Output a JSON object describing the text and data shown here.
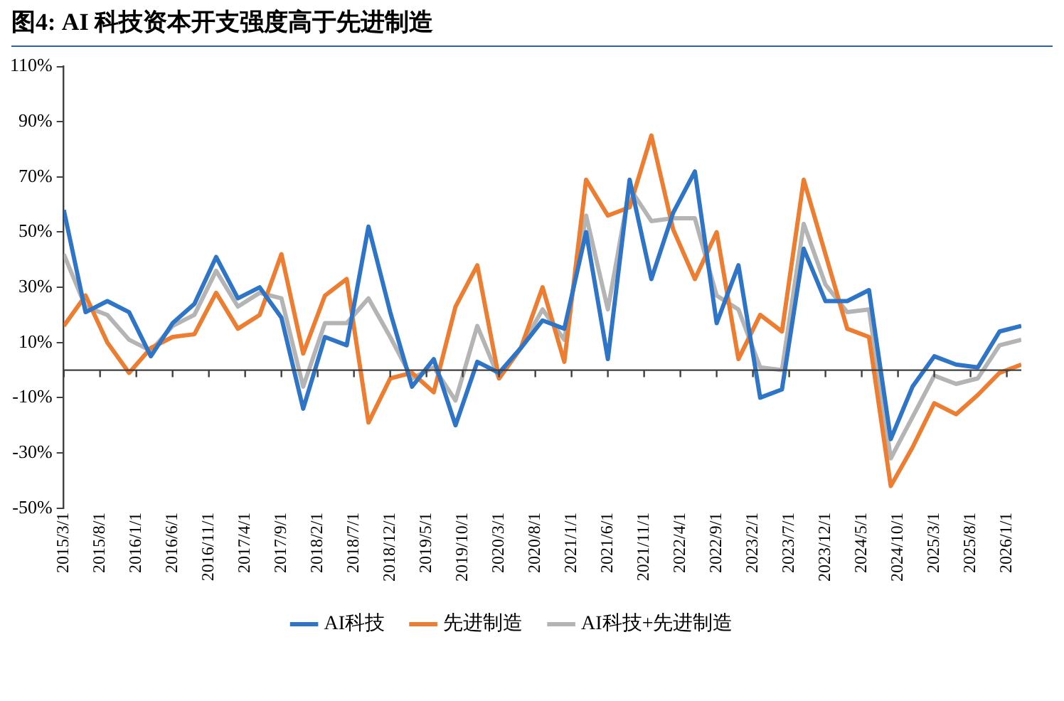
{
  "chart_data": {
    "type": "line",
    "title": "图4: AI 科技资本开支强度高于先进制造",
    "x": [
      "2015-03",
      "2015-06",
      "2015-09",
      "2015-12",
      "2016-03",
      "2016-06",
      "2016-09",
      "2016-12",
      "2017-03",
      "2017-06",
      "2017-09",
      "2017-12",
      "2018-03",
      "2018-06",
      "2018-09",
      "2018-12",
      "2019-03",
      "2019-06",
      "2019-09",
      "2019-12",
      "2020-03",
      "2020-06",
      "2020-09",
      "2020-12",
      "2021-03",
      "2021-06",
      "2021-09",
      "2021-12",
      "2022-03",
      "2022-06",
      "2022-09",
      "2022-12",
      "2023-03",
      "2023-06",
      "2023-09",
      "2023-12",
      "2024-03",
      "2024-06",
      "2024-09",
      "2024-12",
      "2025-03",
      "2025-06",
      "2025-09",
      "2025-12",
      "2026-03"
    ],
    "series": [
      {
        "name": "AI科技",
        "color": "#2f75c7",
        "values": [
          58,
          21,
          25,
          21,
          5,
          17,
          24,
          41,
          26,
          30,
          19,
          -14,
          12,
          9,
          52,
          21,
          -6,
          4,
          -20,
          3,
          -1,
          8,
          18,
          15,
          50,
          4,
          69,
          33,
          57,
          72,
          17,
          38,
          -10,
          -7,
          44,
          25,
          25,
          29,
          -25,
          -6,
          5,
          2,
          1,
          14,
          16
        ]
      },
      {
        "name": "先进制造",
        "color": "#ed7d31",
        "values": [
          16,
          27,
          10,
          -1,
          8,
          12,
          13,
          28,
          15,
          20,
          42,
          6,
          27,
          33,
          -19,
          -3,
          -1,
          -8,
          23,
          38,
          -3,
          8,
          30,
          3,
          69,
          56,
          59,
          85,
          51,
          33,
          50,
          4,
          20,
          14,
          69,
          42,
          15,
          12,
          -42,
          -28,
          -12,
          -16,
          -9,
          -1,
          2
        ]
      },
      {
        "name": "AI科技+先进制造",
        "color": "#b4b4b4",
        "values": [
          42,
          23,
          20,
          11,
          7,
          16,
          20,
          36,
          23,
          28,
          26,
          -6,
          17,
          17,
          26,
          12,
          -3,
          1,
          -11,
          16,
          -3,
          8,
          22,
          11,
          56,
          22,
          66,
          54,
          55,
          55,
          27,
          22,
          1,
          0,
          53,
          31,
          21,
          22,
          -32,
          -17,
          -2,
          -5,
          -3,
          9,
          11
        ]
      }
    ],
    "xlim": [
      "2015-03",
      "2026-03"
    ],
    "xticks": [
      {
        "value": "2015-03",
        "label": "2015/3/1"
      },
      {
        "value": "2015-08",
        "label": "2015/8/1"
      },
      {
        "value": "2016-01",
        "label": "2016/1/1"
      },
      {
        "value": "2016-06",
        "label": "2016/6/1"
      },
      {
        "value": "2016-11",
        "label": "2016/11/1"
      },
      {
        "value": "2017-04",
        "label": "2017/4/1"
      },
      {
        "value": "2017-09",
        "label": "2017/9/1"
      },
      {
        "value": "2018-02",
        "label": "2018/2/1"
      },
      {
        "value": "2018-07",
        "label": "2018/7/1"
      },
      {
        "value": "2018-12",
        "label": "2018/12/1"
      },
      {
        "value": "2019-05",
        "label": "2019/5/1"
      },
      {
        "value": "2019-10",
        "label": "2019/10/1"
      },
      {
        "value": "2020-03",
        "label": "2020/3/1"
      },
      {
        "value": "2020-08",
        "label": "2020/8/1"
      },
      {
        "value": "2021-01",
        "label": "2021/1/1"
      },
      {
        "value": "2021-06",
        "label": "2021/6/1"
      },
      {
        "value": "2021-11",
        "label": "2021/11/1"
      },
      {
        "value": "2022-04",
        "label": "2022/4/1"
      },
      {
        "value": "2022-09",
        "label": "2022/9/1"
      },
      {
        "value": "2023-02",
        "label": "2023/2/1"
      },
      {
        "value": "2023-07",
        "label": "2023/7/1"
      },
      {
        "value": "2023-12",
        "label": "2023/12/1"
      },
      {
        "value": "2024-05",
        "label": "2024/5/1"
      },
      {
        "value": "2024-10",
        "label": "2024/10/1"
      },
      {
        "value": "2025-03",
        "label": "2025/3/1"
      },
      {
        "value": "2025-08",
        "label": "2025/8/1"
      },
      {
        "value": "2026-01",
        "label": "2026/1/1"
      }
    ],
    "ylim": [
      -50,
      110
    ],
    "yticks": [
      {
        "value": -50,
        "label": "-50%"
      },
      {
        "value": -30,
        "label": "-30%"
      },
      {
        "value": -10,
        "label": "-10%"
      },
      {
        "value": 10,
        "label": "10%"
      },
      {
        "value": 30,
        "label": "30%"
      },
      {
        "value": 50,
        "label": "50%"
      },
      {
        "value": 70,
        "label": "70%"
      },
      {
        "value": 90,
        "label": "90%"
      },
      {
        "value": 110,
        "label": "110%"
      }
    ],
    "grid": false,
    "legend": "bottom",
    "marker": "none",
    "line_style": "solid"
  }
}
